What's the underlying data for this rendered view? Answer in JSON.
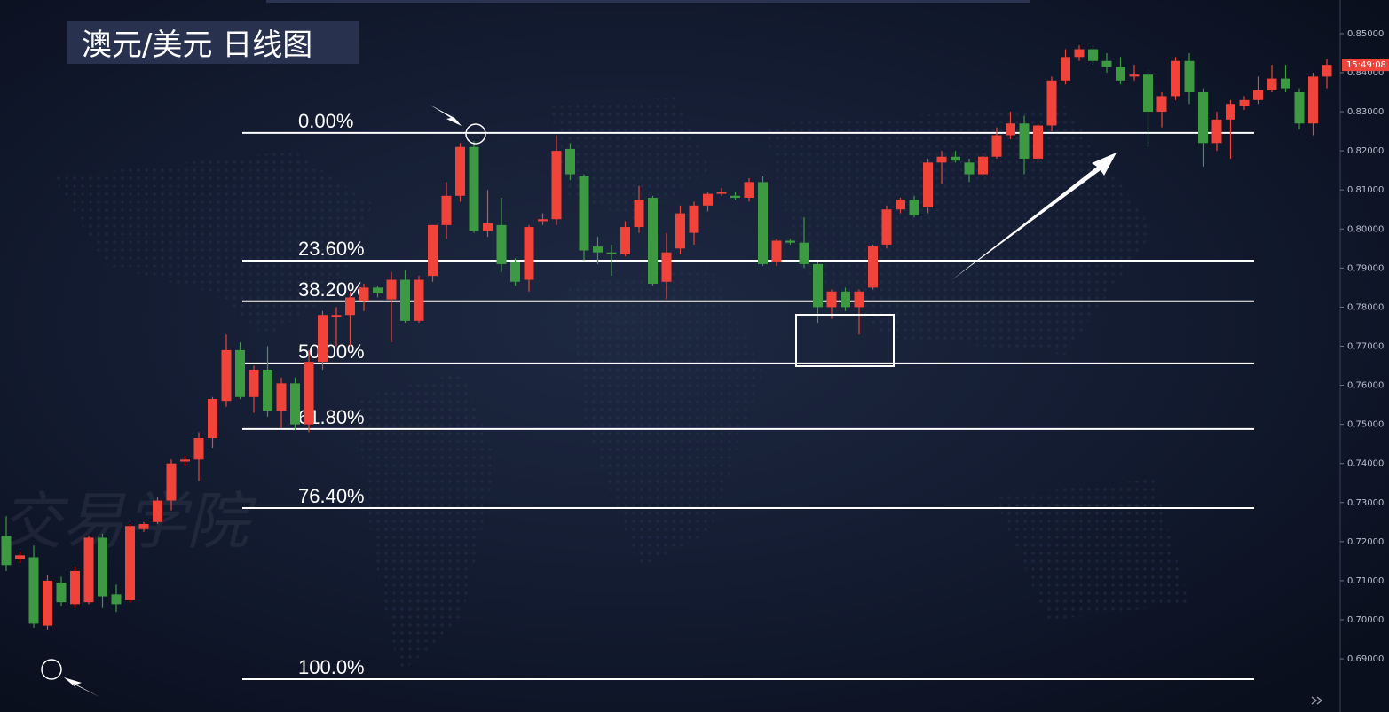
{
  "chart_data": {
    "type": "candlestick",
    "title": "澳元/美元 日线图",
    "watermark": "交易学院",
    "price_tag_label": "15:49:08",
    "up_color": "#f0433a",
    "down_color": "#3e9a42",
    "ylim": [
      0.6764,
      0.8586
    ],
    "yticks": [
      {
        "value": 0.69,
        "label": "0.69000"
      },
      {
        "value": 0.7,
        "label": "0.70000"
      },
      {
        "value": 0.71,
        "label": "0.71000"
      },
      {
        "value": 0.72,
        "label": "0.72000"
      },
      {
        "value": 0.73,
        "label": "0.73000"
      },
      {
        "value": 0.74,
        "label": "0.74000"
      },
      {
        "value": 0.75,
        "label": "0.75000"
      },
      {
        "value": 0.76,
        "label": "0.76000"
      },
      {
        "value": 0.77,
        "label": "0.77000"
      },
      {
        "value": 0.78,
        "label": "0.78000"
      },
      {
        "value": 0.79,
        "label": "0.79000"
      },
      {
        "value": 0.8,
        "label": "0.80000"
      },
      {
        "value": 0.81,
        "label": "0.81000"
      },
      {
        "value": 0.82,
        "label": "0.82000"
      },
      {
        "value": 0.83,
        "label": "0.83000"
      },
      {
        "value": 0.84,
        "label": "0.84000"
      },
      {
        "value": 0.85,
        "label": "0.85000"
      }
    ],
    "fib_levels": [
      {
        "label": "0.00%",
        "value": 0.8246
      },
      {
        "label": "23.60%",
        "value": 0.7919
      },
      {
        "label": "38.20%",
        "value": 0.7815
      },
      {
        "label": "50.00%",
        "value": 0.7656
      },
      {
        "label": "61.80%",
        "value": 0.7488
      },
      {
        "label": "76.40%",
        "value": 0.7286
      },
      {
        "label": "100.0%",
        "value": 0.6848
      }
    ],
    "ohlc": [
      [
        0.7215,
        0.7265,
        0.7125,
        0.714
      ],
      [
        0.7155,
        0.7175,
        0.7145,
        0.7165
      ],
      [
        0.716,
        0.719,
        0.698,
        0.699
      ],
      [
        0.6985,
        0.7115,
        0.6975,
        0.71
      ],
      [
        0.7095,
        0.711,
        0.7035,
        0.7045
      ],
      [
        0.704,
        0.7135,
        0.703,
        0.7125
      ],
      [
        0.7045,
        0.7215,
        0.704,
        0.721
      ],
      [
        0.721,
        0.722,
        0.703,
        0.706
      ],
      [
        0.7065,
        0.709,
        0.702,
        0.704
      ],
      [
        0.705,
        0.7245,
        0.7045,
        0.724
      ],
      [
        0.7232,
        0.725,
        0.7225,
        0.7245
      ],
      [
        0.725,
        0.7315,
        0.7245,
        0.7305
      ],
      [
        0.7305,
        0.741,
        0.728,
        0.74
      ],
      [
        0.7405,
        0.742,
        0.7395,
        0.741
      ],
      [
        0.741,
        0.748,
        0.7355,
        0.7465
      ],
      [
        0.7465,
        0.757,
        0.744,
        0.7565
      ],
      [
        0.756,
        0.773,
        0.7545,
        0.769
      ],
      [
        0.769,
        0.771,
        0.7565,
        0.757
      ],
      [
        0.757,
        0.765,
        0.753,
        0.764
      ],
      [
        0.764,
        0.77,
        0.752,
        0.7535
      ],
      [
        0.7535,
        0.762,
        0.749,
        0.7605
      ],
      [
        0.7605,
        0.762,
        0.7485,
        0.75
      ],
      [
        0.75,
        0.769,
        0.748,
        0.766
      ],
      [
        0.766,
        0.779,
        0.764,
        0.778
      ],
      [
        0.7775,
        0.78,
        0.77,
        0.778
      ],
      [
        0.778,
        0.784,
        0.77,
        0.7825
      ],
      [
        0.7815,
        0.786,
        0.779,
        0.785
      ],
      [
        0.785,
        0.7855,
        0.7825,
        0.7835
      ],
      [
        0.782,
        0.789,
        0.771,
        0.787
      ],
      [
        0.787,
        0.7895,
        0.776,
        0.7765
      ],
      [
        0.7765,
        0.788,
        0.776,
        0.787
      ],
      [
        0.788,
        0.801,
        0.7865,
        0.801
      ],
      [
        0.801,
        0.812,
        0.7975,
        0.8085
      ],
      [
        0.8085,
        0.822,
        0.807,
        0.821
      ],
      [
        0.821,
        0.8225,
        0.799,
        0.7995
      ],
      [
        0.7995,
        0.81,
        0.798,
        0.8015
      ],
      [
        0.801,
        0.808,
        0.789,
        0.791
      ],
      [
        0.7915,
        0.7925,
        0.7855,
        0.7865
      ],
      [
        0.787,
        0.801,
        0.784,
        0.8005
      ],
      [
        0.802,
        0.804,
        0.801,
        0.8025
      ],
      [
        0.8025,
        0.824,
        0.801,
        0.82
      ],
      [
        0.8205,
        0.822,
        0.8125,
        0.814
      ],
      [
        0.8135,
        0.814,
        0.792,
        0.7945
      ],
      [
        0.7955,
        0.798,
        0.791,
        0.794
      ],
      [
        0.794,
        0.796,
        0.788,
        0.7935
      ],
      [
        0.7935,
        0.802,
        0.793,
        0.8005
      ],
      [
        0.8005,
        0.811,
        0.799,
        0.8075
      ],
      [
        0.808,
        0.8085,
        0.7855,
        0.786
      ],
      [
        0.7865,
        0.799,
        0.782,
        0.794
      ],
      [
        0.795,
        0.806,
        0.7935,
        0.804
      ],
      [
        0.799,
        0.807,
        0.796,
        0.806
      ],
      [
        0.806,
        0.8095,
        0.8045,
        0.809
      ],
      [
        0.809,
        0.8105,
        0.8085,
        0.8095
      ],
      [
        0.8085,
        0.8095,
        0.8075,
        0.808
      ],
      [
        0.808,
        0.813,
        0.807,
        0.812
      ],
      [
        0.812,
        0.8135,
        0.7905,
        0.791
      ],
      [
        0.7915,
        0.7975,
        0.7905,
        0.797
      ],
      [
        0.797,
        0.7975,
        0.796,
        0.7965
      ],
      [
        0.7965,
        0.803,
        0.79,
        0.791
      ],
      [
        0.791,
        0.7915,
        0.776,
        0.78
      ],
      [
        0.78,
        0.7845,
        0.777,
        0.784
      ],
      [
        0.784,
        0.785,
        0.779,
        0.78
      ],
      [
        0.78,
        0.7845,
        0.773,
        0.784
      ],
      [
        0.785,
        0.796,
        0.7845,
        0.7955
      ],
      [
        0.796,
        0.806,
        0.795,
        0.805
      ],
      [
        0.805,
        0.808,
        0.804,
        0.8075
      ],
      [
        0.8075,
        0.8085,
        0.803,
        0.8035
      ],
      [
        0.8055,
        0.818,
        0.804,
        0.817
      ],
      [
        0.817,
        0.82,
        0.8115,
        0.8185
      ],
      [
        0.8185,
        0.82,
        0.817,
        0.8175
      ],
      [
        0.817,
        0.818,
        0.812,
        0.814
      ],
      [
        0.814,
        0.8195,
        0.8135,
        0.8185
      ],
      [
        0.8185,
        0.826,
        0.818,
        0.824
      ],
      [
        0.824,
        0.83,
        0.823,
        0.827
      ],
      [
        0.827,
        0.829,
        0.814,
        0.818
      ],
      [
        0.818,
        0.827,
        0.817,
        0.8265
      ],
      [
        0.8265,
        0.839,
        0.825,
        0.838
      ],
      [
        0.838,
        0.846,
        0.837,
        0.844
      ],
      [
        0.844,
        0.847,
        0.843,
        0.846
      ],
      [
        0.846,
        0.847,
        0.842,
        0.843
      ],
      [
        0.843,
        0.845,
        0.84,
        0.8415
      ],
      [
        0.8415,
        0.844,
        0.837,
        0.838
      ],
      [
        0.839,
        0.842,
        0.838,
        0.8395
      ],
      [
        0.8395,
        0.8405,
        0.821,
        0.83
      ],
      [
        0.83,
        0.835,
        0.826,
        0.834
      ],
      [
        0.834,
        0.844,
        0.833,
        0.843
      ],
      [
        0.843,
        0.845,
        0.832,
        0.835
      ],
      [
        0.835,
        0.836,
        0.816,
        0.822
      ],
      [
        0.822,
        0.83,
        0.82,
        0.828
      ],
      [
        0.828,
        0.833,
        0.818,
        0.832
      ],
      [
        0.8315,
        0.834,
        0.8305,
        0.833
      ],
      [
        0.833,
        0.839,
        0.832,
        0.8355
      ],
      [
        0.8355,
        0.842,
        0.835,
        0.8385
      ],
      [
        0.8385,
        0.842,
        0.835,
        0.836
      ],
      [
        0.835,
        0.836,
        0.8255,
        0.827
      ],
      [
        0.827,
        0.84,
        0.824,
        0.839
      ],
      [
        0.839,
        0.8435,
        0.836,
        0.842
      ]
    ]
  }
}
